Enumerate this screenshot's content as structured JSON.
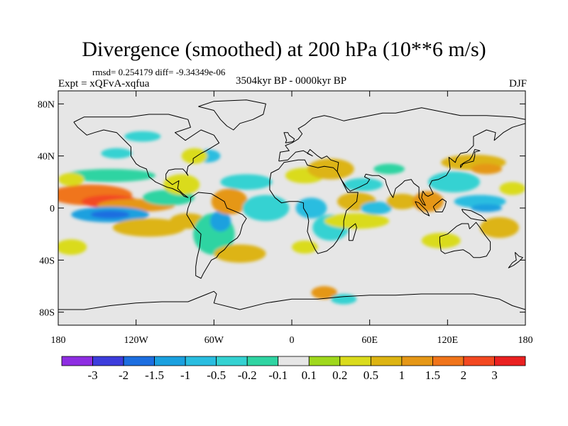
{
  "chart_data": {
    "type": "heatmap",
    "title": "Divergence (smoothed) at 200 hPa (10**6 m/s)",
    "stats_text": "rmsd= 0.254179  diff= -9.34349e-06",
    "experiment": "Expt = xQFvA-xqfua",
    "period": "3504kyr BP - 0000kyr BP",
    "season": "DJF",
    "x_ticks": [
      "180",
      "120W",
      "60W",
      "0",
      "60E",
      "120E",
      "180"
    ],
    "x_tick_values": [
      -180,
      -120,
      -60,
      0,
      60,
      120,
      180
    ],
    "y_ticks": [
      "80N",
      "40N",
      "0",
      "40S",
      "80S"
    ],
    "y_tick_values": [
      80,
      40,
      0,
      -40,
      -80
    ],
    "xlim": [
      -180,
      180
    ],
    "ylim": [
      -90,
      90
    ],
    "colorbar_levels": [
      "-3",
      "-2",
      "-1.5",
      "-1",
      "-0.5",
      "-0.2",
      "-0.1",
      "0.1",
      "0.2",
      "0.5",
      "1",
      "1.5",
      "2",
      "3"
    ],
    "colorbar_colors": [
      "#8e2de2",
      "#3c3cdc",
      "#1c6ee0",
      "#1aa0df",
      "#29bde0",
      "#34d2d2",
      "#2fd4a2",
      "#e6e6e6",
      "#9fd81c",
      "#dadb1c",
      "#ddb412",
      "#e59716",
      "#f0741a",
      "#f34820",
      "#ea2020"
    ],
    "blobs": [
      {
        "lon": -155,
        "lat": 10,
        "rx": 32,
        "ry": 8,
        "level": 12
      },
      {
        "lon": -140,
        "lat": 5,
        "rx": 22,
        "ry": 5,
        "level": 13
      },
      {
        "lon": -120,
        "lat": 2,
        "rx": 30,
        "ry": 5,
        "level": 11
      },
      {
        "lon": -140,
        "lat": -5,
        "rx": 30,
        "ry": 6,
        "level": 3
      },
      {
        "lon": -140,
        "lat": -5,
        "rx": 15,
        "ry": 3,
        "level": 2
      },
      {
        "lon": -140,
        "lat": 25,
        "rx": 35,
        "ry": 5,
        "level": 6
      },
      {
        "lon": -170,
        "lat": 22,
        "rx": 10,
        "ry": 5,
        "level": 9
      },
      {
        "lon": -110,
        "lat": -15,
        "rx": 28,
        "ry": 7,
        "level": 10
      },
      {
        "lon": -95,
        "lat": 8,
        "rx": 20,
        "ry": 6,
        "level": 6
      },
      {
        "lon": -85,
        "lat": 18,
        "rx": 14,
        "ry": 8,
        "level": 9
      },
      {
        "lon": -80,
        "lat": -10,
        "rx": 14,
        "ry": 6,
        "level": 10
      },
      {
        "lon": -60,
        "lat": -20,
        "rx": 16,
        "ry": 16,
        "level": 6
      },
      {
        "lon": -55,
        "lat": -10,
        "rx": 8,
        "ry": 8,
        "level": 3
      },
      {
        "lon": -48,
        "lat": 5,
        "rx": 14,
        "ry": 10,
        "level": 11
      },
      {
        "lon": -20,
        "lat": 0,
        "rx": 18,
        "ry": 10,
        "level": 5
      },
      {
        "lon": -35,
        "lat": 20,
        "rx": 20,
        "ry": 6,
        "level": 5
      },
      {
        "lon": -40,
        "lat": -35,
        "rx": 20,
        "ry": 7,
        "level": 10
      },
      {
        "lon": -65,
        "lat": 40,
        "rx": 10,
        "ry": 5,
        "level": 4
      },
      {
        "lon": -75,
        "lat": 40,
        "rx": 10,
        "ry": 6,
        "level": 9
      },
      {
        "lon": -135,
        "lat": 42,
        "rx": 12,
        "ry": 4,
        "level": 5
      },
      {
        "lon": 10,
        "lat": 25,
        "rx": 15,
        "ry": 6,
        "level": 9
      },
      {
        "lon": 30,
        "lat": 30,
        "rx": 18,
        "ry": 8,
        "level": 10
      },
      {
        "lon": 15,
        "lat": 0,
        "rx": 12,
        "ry": 8,
        "level": 4
      },
      {
        "lon": 30,
        "lat": -15,
        "rx": 14,
        "ry": 10,
        "level": 5
      },
      {
        "lon": 10,
        "lat": -30,
        "rx": 10,
        "ry": 5,
        "level": 9
      },
      {
        "lon": 50,
        "lat": 5,
        "rx": 15,
        "ry": 7,
        "level": 10
      },
      {
        "lon": 50,
        "lat": -10,
        "rx": 25,
        "ry": 6,
        "level": 9
      },
      {
        "lon": 55,
        "lat": 18,
        "rx": 15,
        "ry": 5,
        "level": 5
      },
      {
        "lon": 65,
        "lat": 0,
        "rx": 12,
        "ry": 5,
        "level": 4
      },
      {
        "lon": 85,
        "lat": 5,
        "rx": 12,
        "ry": 6,
        "level": 10
      },
      {
        "lon": 75,
        "lat": 30,
        "rx": 12,
        "ry": 4,
        "level": 6
      },
      {
        "lon": 105,
        "lat": 5,
        "rx": 12,
        "ry": 8,
        "level": 11
      },
      {
        "lon": 125,
        "lat": 20,
        "rx": 20,
        "ry": 8,
        "level": 5
      },
      {
        "lon": 140,
        "lat": 35,
        "rx": 25,
        "ry": 6,
        "level": 10
      },
      {
        "lon": 150,
        "lat": 30,
        "rx": 12,
        "ry": 4,
        "level": 11
      },
      {
        "lon": 145,
        "lat": 5,
        "rx": 20,
        "ry": 5,
        "level": 4
      },
      {
        "lon": 150,
        "lat": 0,
        "rx": 12,
        "ry": 3,
        "level": 3
      },
      {
        "lon": 160,
        "lat": -15,
        "rx": 15,
        "ry": 8,
        "level": 10
      },
      {
        "lon": 115,
        "lat": -25,
        "rx": 15,
        "ry": 6,
        "level": 9
      },
      {
        "lon": 170,
        "lat": 15,
        "rx": 10,
        "ry": 5,
        "level": 9
      },
      {
        "lon": -115,
        "lat": 55,
        "rx": 14,
        "ry": 4,
        "level": 5
      },
      {
        "lon": 25,
        "lat": -65,
        "rx": 10,
        "ry": 5,
        "level": 11
      },
      {
        "lon": 40,
        "lat": -70,
        "rx": 10,
        "ry": 4,
        "level": 5
      },
      {
        "lon": -170,
        "lat": -30,
        "rx": 12,
        "ry": 6,
        "level": 9
      }
    ]
  }
}
